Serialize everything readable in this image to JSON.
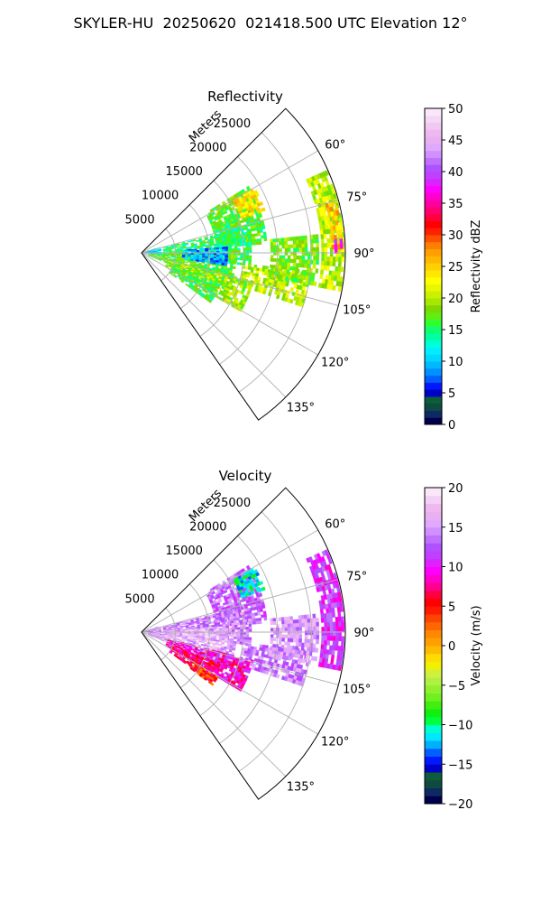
{
  "figure": {
    "title": "SKYLER-HU  20250620  021418.500 UTC Elevation 12°"
  },
  "chart_data": [
    {
      "type": "heatmap",
      "projection": "polar-sector",
      "title": "Reflectivity",
      "radial_label": "Meters",
      "radial_ticks": [
        5000,
        10000,
        15000,
        20000,
        25000
      ],
      "radial_tick_labels": [
        "5000",
        "10000",
        "15000",
        "20000",
        "25000"
      ],
      "rlim": [
        0,
        30000
      ],
      "theta_ticks_deg": [
        60,
        75,
        90,
        105,
        120,
        135
      ],
      "theta_tick_labels": [
        "60°",
        "75°",
        "90°",
        "105°",
        "120°",
        "135°"
      ],
      "theta_range_deg": [
        45,
        145
      ],
      "grid": true,
      "colorbar": {
        "label": "Reflectivity dBZ",
        "range": [
          0,
          50
        ],
        "ticks": [
          0,
          5,
          10,
          15,
          20,
          25,
          30,
          35,
          40,
          45,
          50
        ],
        "tick_labels": [
          "0",
          "5",
          "10",
          "15",
          "20",
          "25",
          "30",
          "35",
          "40",
          "45",
          "50"
        ],
        "colors": [
          "#00004a",
          "#0e2a62",
          "#0f4a40",
          "#0d5c3a",
          "#0000c8",
          "#0018ff",
          "#0060ff",
          "#0090ff",
          "#00b8ff",
          "#00d8ff",
          "#00eeff",
          "#00ffd8",
          "#00ffa0",
          "#10ff70",
          "#30ff30",
          "#60ee10",
          "#80d800",
          "#a8e800",
          "#ccf000",
          "#e8f800",
          "#ffff00",
          "#ffe800",
          "#ffd000",
          "#ffb800",
          "#ffa000",
          "#ff8000",
          "#ff5000",
          "#ff2000",
          "#ff0000",
          "#ff0040",
          "#ff0070",
          "#ff00a0",
          "#ff00d0",
          "#ff00ff",
          "#dd22ff",
          "#c040ff",
          "#b050ff",
          "#c070ff",
          "#d090ff",
          "#e0a8ff",
          "#e8b0f0",
          "#f0b8f0",
          "#f0c8f0",
          "#f5d8f5",
          "#fae8fa"
        ]
      },
      "regions": [
        {
          "theta": [
            58,
            86
          ],
          "r": [
            11000,
            18500
          ],
          "value": 17
        },
        {
          "theta": [
            60,
            70
          ],
          "r": [
            15500,
            19000
          ],
          "value": 24
        },
        {
          "theta": [
            68,
            85
          ],
          "r": [
            11500,
            14500
          ],
          "value": 16
        },
        {
          "theta": [
            76,
            96
          ],
          "r": [
            3200,
            16000
          ],
          "value": 15
        },
        {
          "theta": [
            90,
            112
          ],
          "r": [
            1000,
            14000
          ],
          "value": 17
        },
        {
          "theta": [
            96,
            108
          ],
          "r": [
            15000,
            25000
          ],
          "value": 20
        },
        {
          "theta": [
            104,
            120
          ],
          "r": [
            4000,
            17000
          ],
          "value": 19
        },
        {
          "theta": [
            112,
            126
          ],
          "r": [
            5000,
            12500
          ],
          "value": 16
        },
        {
          "theta": [
            84,
            100
          ],
          "r": [
            19000,
            26000
          ],
          "value": 18
        },
        {
          "theta": [
            66,
            101
          ],
          "r": [
            26500,
            29500
          ],
          "value": 20
        },
        {
          "theta": [
            75,
            88
          ],
          "r": [
            28000,
            29600
          ],
          "value": 26
        },
        {
          "theta": [
            86,
            89
          ],
          "r": [
            28400,
            29300
          ],
          "value": 38
        },
        {
          "theta": [
            72,
            94
          ],
          "r": [
            0,
            2800
          ],
          "value": 11
        },
        {
          "theta": [
            86,
            98
          ],
          "r": [
            6000,
            12500
          ],
          "value": 9
        }
      ]
    },
    {
      "type": "heatmap",
      "projection": "polar-sector",
      "title": "Velocity",
      "radial_label": "Meters",
      "radial_ticks": [
        5000,
        10000,
        15000,
        20000,
        25000
      ],
      "radial_tick_labels": [
        "5000",
        "10000",
        "15000",
        "20000",
        "25000"
      ],
      "rlim": [
        0,
        30000
      ],
      "theta_ticks_deg": [
        60,
        75,
        90,
        105,
        120,
        135
      ],
      "theta_tick_labels": [
        "60°",
        "75°",
        "90°",
        "105°",
        "120°",
        "135°"
      ],
      "theta_range_deg": [
        45,
        145
      ],
      "grid": true,
      "colorbar": {
        "label": "Velocity (m/s)",
        "range": [
          -20,
          20
        ],
        "ticks": [
          -20,
          -15,
          -10,
          -5,
          0,
          5,
          10,
          15,
          20
        ],
        "tick_labels": [
          "−20",
          "−15",
          "−10",
          "−5",
          "0",
          "5",
          "10",
          "15",
          "20"
        ],
        "colors": [
          "#00004a",
          "#0e2a62",
          "#0f4a40",
          "#0d5c3a",
          "#0000c8",
          "#0018ff",
          "#0060ff",
          "#00b0ff",
          "#00e8ff",
          "#00ffd0",
          "#00ff40",
          "#10f010",
          "#40ee10",
          "#70f020",
          "#90f030",
          "#b0f040",
          "#d0f040",
          "#f0f000",
          "#ffdd00",
          "#ffbb00",
          "#ffa000",
          "#ff8800",
          "#ff6600",
          "#ff4400",
          "#ff1a00",
          "#ff0000",
          "#ff0040",
          "#ff0090",
          "#ff00cc",
          "#ff00ff",
          "#dd22ff",
          "#c040ff",
          "#b050ff",
          "#c070ff",
          "#d090ff",
          "#e0a8ff",
          "#e8b0f0",
          "#f0b8f0",
          "#f5d0f5",
          "#fae8fa"
        ]
      },
      "regions": [
        {
          "theta": [
            58,
            86
          ],
          "r": [
            11000,
            18500
          ],
          "value": 13
        },
        {
          "theta": [
            60,
            70
          ],
          "r": [
            15500,
            19000
          ],
          "value": -11
        },
        {
          "theta": [
            76,
            96
          ],
          "r": [
            3200,
            16000
          ],
          "value": 14
        },
        {
          "theta": [
            90,
            112
          ],
          "r": [
            1000,
            14000
          ],
          "value": 16
        },
        {
          "theta": [
            96,
            108
          ],
          "r": [
            15000,
            25000
          ],
          "value": 14
        },
        {
          "theta": [
            104,
            120
          ],
          "r": [
            4000,
            17000
          ],
          "value": 9
        },
        {
          "theta": [
            112,
            126
          ],
          "r": [
            5000,
            12500
          ],
          "value": 7
        },
        {
          "theta": [
            120,
            127
          ],
          "r": [
            8500,
            13000
          ],
          "value": 4
        },
        {
          "theta": [
            84,
            100
          ],
          "r": [
            19000,
            26000
          ],
          "value": 15
        },
        {
          "theta": [
            66,
            101
          ],
          "r": [
            26500,
            29500
          ],
          "value": 11
        },
        {
          "theta": [
            72,
            94
          ],
          "r": [
            0,
            2800
          ],
          "value": 14
        },
        {
          "theta": [
            86,
            98
          ],
          "r": [
            6000,
            12500
          ],
          "value": 17
        }
      ]
    }
  ]
}
